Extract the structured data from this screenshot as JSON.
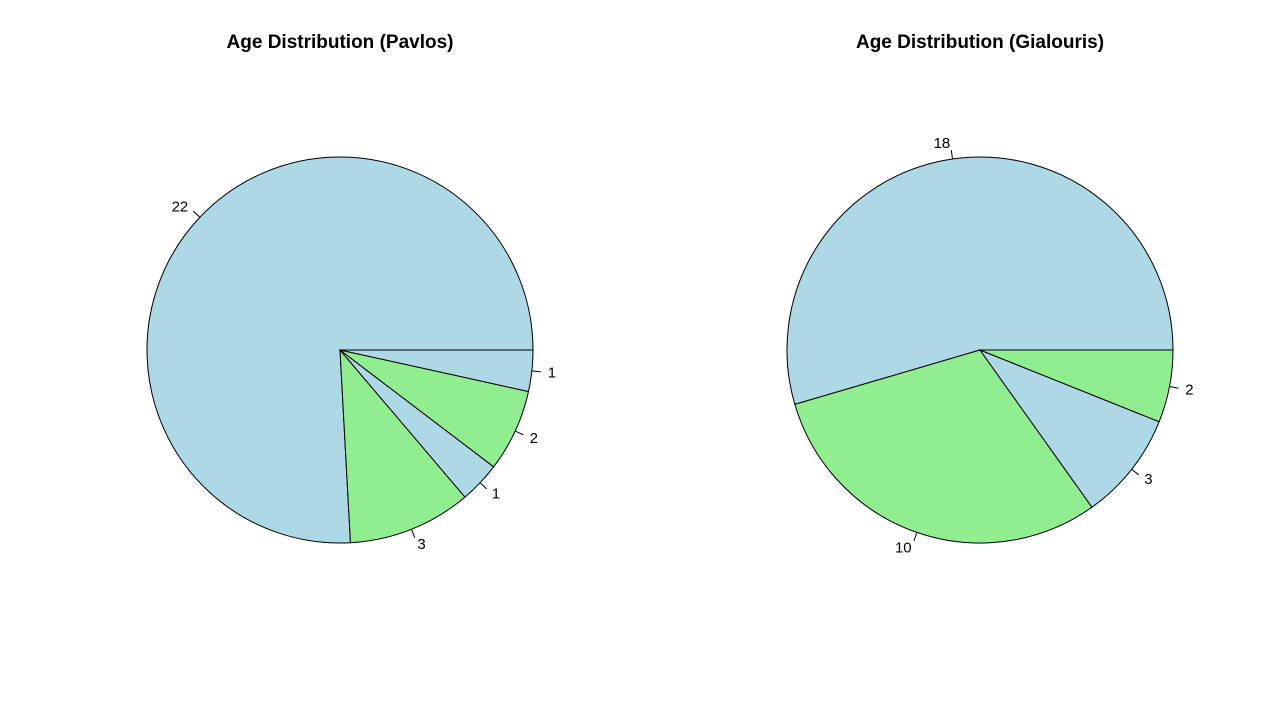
{
  "chart_data": [
    {
      "type": "pie",
      "title": "Age Distribution (Pavlos)",
      "values": [
        22,
        3,
        1,
        2,
        1
      ],
      "labels": [
        "22",
        "3",
        "1",
        "2",
        "1"
      ],
      "slice_colors": [
        "#ADD8E6",
        "#90EE90",
        "#ADD8E6",
        "#90EE90",
        "#ADD8E6"
      ],
      "start_angle_deg": 0,
      "direction": "counterclockwise"
    },
    {
      "type": "pie",
      "title": "Age Distribution (Gialouris)",
      "values": [
        18,
        10,
        3,
        2
      ],
      "labels": [
        "18",
        "10",
        "3",
        "2"
      ],
      "slice_colors": [
        "#ADD8E6",
        "#90EE90",
        "#ADD8E6",
        "#90EE90"
      ],
      "start_angle_deg": 0,
      "direction": "counterclockwise"
    }
  ]
}
